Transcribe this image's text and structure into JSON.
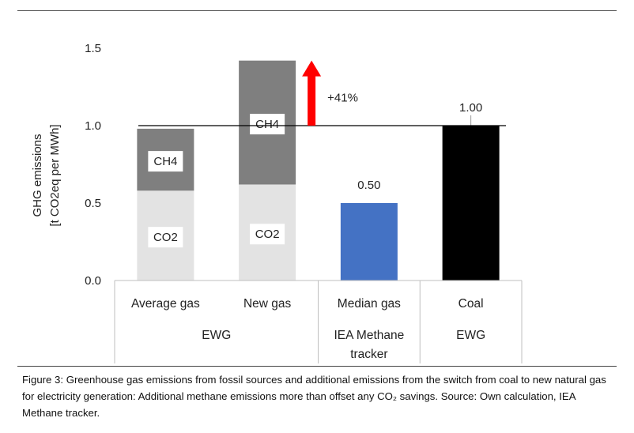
{
  "chart_data": {
    "type": "bar",
    "ylabel_lines": [
      "GHG emissions",
      "[t CO2eq per MWh]"
    ],
    "ylim": [
      0,
      1.5
    ],
    "yticks": [
      "0.0",
      "0.5",
      "1.0",
      "1.5"
    ],
    "grid": false,
    "reference_line": 1.0,
    "categories": [
      "Average gas",
      "New gas",
      "Median  gas",
      "Coal"
    ],
    "stacked_series": [
      {
        "name": "CO2",
        "values": [
          0.58,
          0.62,
          null,
          null
        ],
        "color": "#e3e3e3"
      },
      {
        "name": "CH4",
        "values": [
          0.4,
          0.8,
          null,
          null
        ],
        "color": "#7f7f7f"
      }
    ],
    "single_bars": [
      {
        "category": "Median  gas",
        "value": 0.5,
        "label": "0.50",
        "color": "#4472c4"
      },
      {
        "category": "Coal",
        "value": 1.0,
        "label": "1.00",
        "color": "#000000"
      }
    ],
    "segment_labels": [
      "CH4",
      "CO2"
    ],
    "annotation": {
      "text": "+41%",
      "color": "#ff0000"
    },
    "group_labels": [
      {
        "lines": [
          "EWG"
        ]
      },
      {
        "lines": [
          "IEA Methane",
          "tracker"
        ]
      },
      {
        "lines": [
          "EWG"
        ]
      }
    ]
  },
  "caption": "Figure 3: Greenhouse gas emissions from fossil sources and additional emissions from the switch from coal to new natural gas for electricity generation: Additional methane emissions more than offset any CO₂ savings. Source: Own calculation, IEA Methane tracker."
}
